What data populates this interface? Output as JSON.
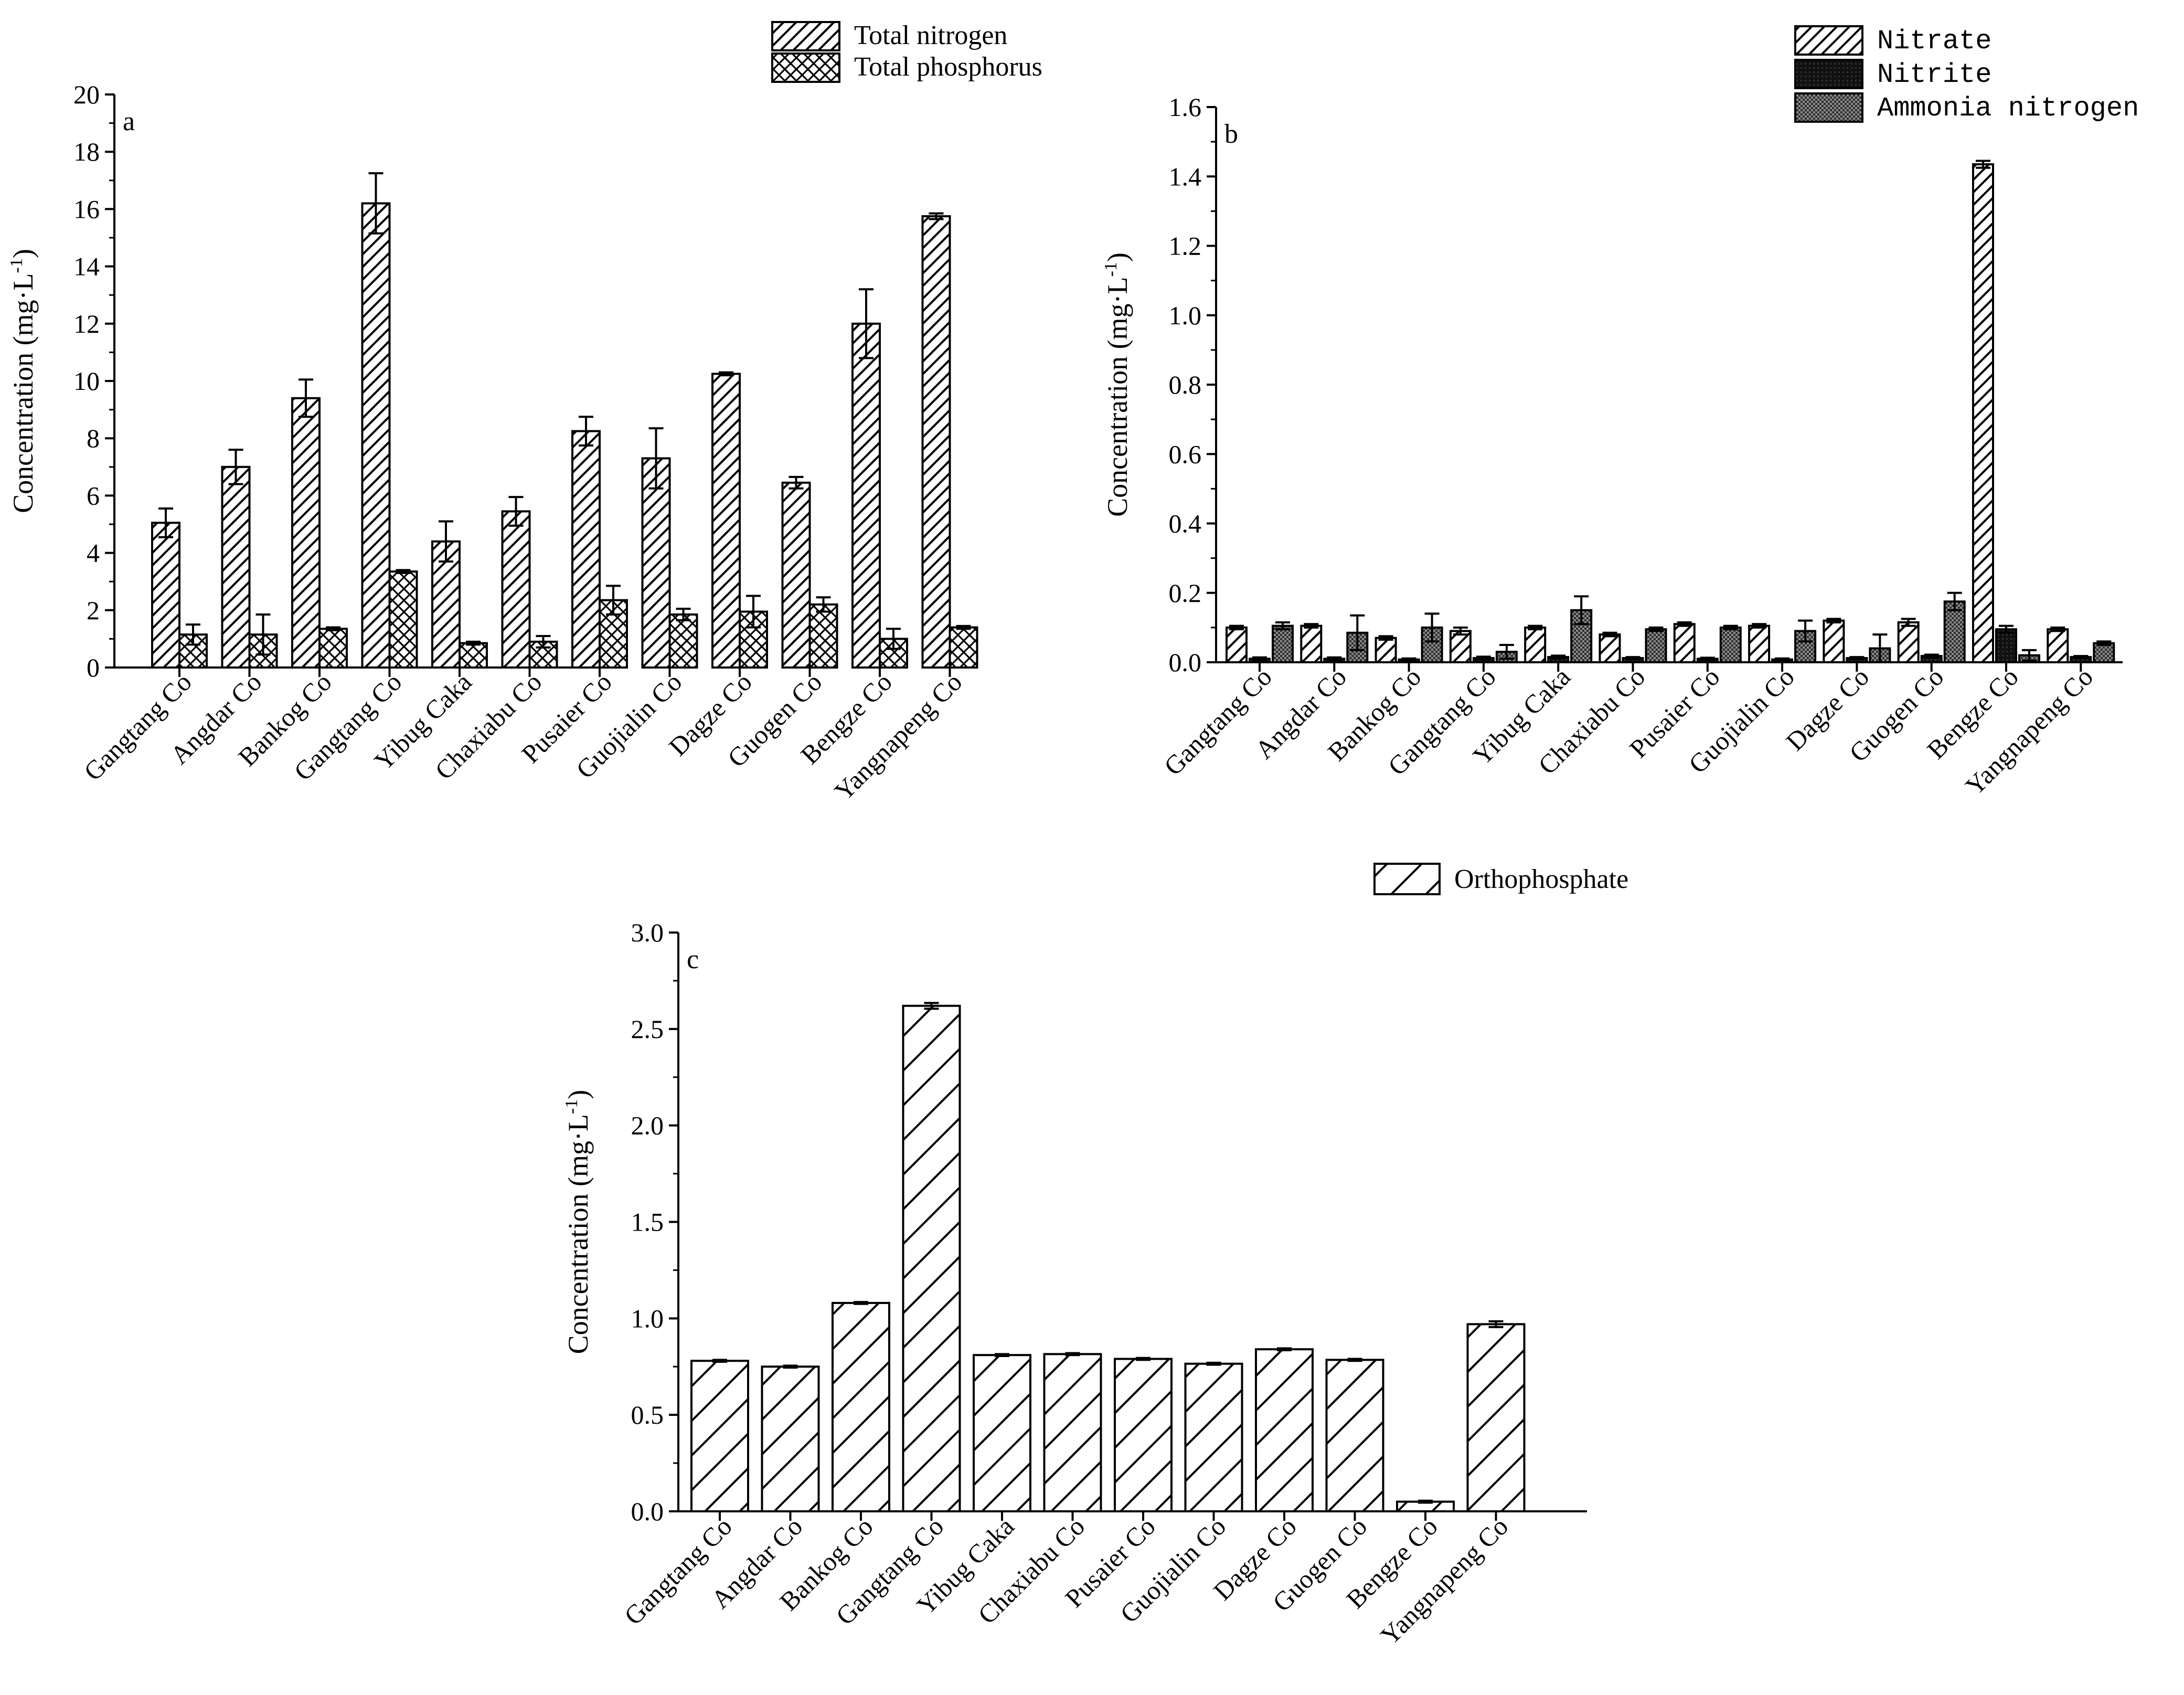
{
  "chart_data": [
    {
      "type": "bar",
      "panel_label": "a",
      "categories": [
        "Gangtang Co",
        "Angdar Co",
        "Bankog Co",
        "Gangtang Co",
        "Yibug Caka",
        "Chaxiabu Co",
        "Pusaier Co",
        "Guojialin Co",
        "Dagze Co",
        "Guogen Co",
        "Bengze Co",
        "Yangnapeng Co"
      ],
      "series": [
        {
          "name": "Total nitrogen",
          "pattern": "diag",
          "values": [
            5.05,
            7.0,
            9.4,
            16.2,
            4.4,
            5.45,
            8.25,
            7.3,
            10.25,
            6.45,
            12.0,
            15.75
          ],
          "errors": [
            0.5,
            0.6,
            0.65,
            1.05,
            0.7,
            0.5,
            0.5,
            1.05,
            0.05,
            0.2,
            1.2,
            0.1
          ]
        },
        {
          "name": "Total phosphorus",
          "pattern": "cross",
          "values": [
            1.15,
            1.15,
            1.35,
            3.35,
            0.85,
            0.9,
            2.35,
            1.85,
            1.95,
            2.2,
            1.0,
            1.4
          ],
          "errors": [
            0.35,
            0.7,
            0.05,
            0.05,
            0.05,
            0.2,
            0.5,
            0.2,
            0.55,
            0.25,
            0.35,
            0.05
          ]
        }
      ],
      "ylabel": "Concentration (mg·L",
      "ylabel_sup": "-1",
      "ylabel_close": ")",
      "ylim": [
        0,
        20
      ],
      "yticks": [
        0,
        2,
        4,
        6,
        8,
        10,
        12,
        14,
        16,
        18,
        20
      ],
      "ytick_labels": [
        "0",
        "2",
        "4",
        "6",
        "8",
        "10",
        "12",
        "14",
        "16",
        "18",
        "20"
      ],
      "legend_position": "top"
    },
    {
      "type": "bar",
      "panel_label": "b",
      "categories": [
        "Gangtang Co",
        "Angdar Co",
        "Bankog Co",
        "Gangtang Co",
        "Yibug Caka",
        "Chaxiabu Co",
        "Pusaier Co",
        "Guojialin Co",
        "Dagze Co",
        "Guogen Co",
        "Bengze Co",
        "Yangnapeng Co"
      ],
      "series": [
        {
          "name": "Nitrate",
          "pattern": "diag",
          "values": [
            0.1,
            0.105,
            0.07,
            0.09,
            0.1,
            0.08,
            0.11,
            0.105,
            0.12,
            0.115,
            1.435,
            0.095
          ],
          "errors": [
            0.005,
            0.005,
            0.005,
            0.01,
            0.005,
            0.005,
            0.005,
            0.005,
            0.005,
            0.01,
            0.01,
            0.005
          ]
        },
        {
          "name": "Nitrite",
          "pattern": "dark",
          "values": [
            0.01,
            0.01,
            0.008,
            0.012,
            0.015,
            0.012,
            0.01,
            0.008,
            0.012,
            0.018,
            0.095,
            0.015
          ],
          "errors": [
            0.004,
            0.004,
            0.003,
            0.004,
            0.004,
            0.003,
            0.003,
            0.003,
            0.003,
            0.004,
            0.01,
            0.003
          ]
        },
        {
          "name": "Ammonia nitrogen",
          "pattern": "dots",
          "values": [
            0.105,
            0.085,
            0.1,
            0.03,
            0.15,
            0.095,
            0.1,
            0.09,
            0.04,
            0.175,
            0.02,
            0.055
          ],
          "errors": [
            0.01,
            0.05,
            0.04,
            0.02,
            0.04,
            0.005,
            0.005,
            0.03,
            0.04,
            0.025,
            0.015,
            0.005
          ]
        }
      ],
      "ylabel": "Concentration (mg·L",
      "ylabel_sup": "-1",
      "ylabel_close": ")",
      "ylim": [
        0,
        1.6
      ],
      "yticks": [
        0,
        0.2,
        0.4,
        0.6,
        0.8,
        1.0,
        1.2,
        1.4,
        1.6
      ],
      "ytick_labels": [
        "0.0",
        "0.2",
        "0.4",
        "0.6",
        "0.8",
        "1.0",
        "1.2",
        "1.4",
        "1.6"
      ],
      "legend_position": "top-right"
    },
    {
      "type": "bar",
      "panel_label": "c",
      "categories": [
        "Gangtang Co",
        "Angdar Co",
        "Bankog Co",
        "Gangtang Co",
        "Yibug Caka",
        "Chaxiabu Co",
        "Pusaier Co",
        "Guojialin Co",
        "Dagze Co",
        "Guogen Co",
        "Bengze Co",
        "Yangnapeng Co"
      ],
      "series": [
        {
          "name": "Orthophosphate",
          "pattern": "diagwide",
          "values": [
            0.78,
            0.75,
            1.08,
            2.62,
            0.81,
            0.815,
            0.79,
            0.765,
            0.84,
            0.785,
            0.05,
            0.97
          ],
          "errors": [
            0.005,
            0.005,
            0.005,
            0.015,
            0.005,
            0.005,
            0.005,
            0.005,
            0.005,
            0.005,
            0.005,
            0.015
          ]
        }
      ],
      "ylabel": "Concentration (mg·L",
      "ylabel_sup": "-1",
      "ylabel_close": ")",
      "ylim": [
        0,
        3.0
      ],
      "yticks": [
        0,
        0.5,
        1.0,
        1.5,
        2.0,
        2.5,
        3.0
      ],
      "ytick_labels": [
        "0.0",
        "0.5",
        "1.0",
        "1.5",
        "2.0",
        "2.5",
        "3.0"
      ],
      "legend_position": "top"
    }
  ]
}
